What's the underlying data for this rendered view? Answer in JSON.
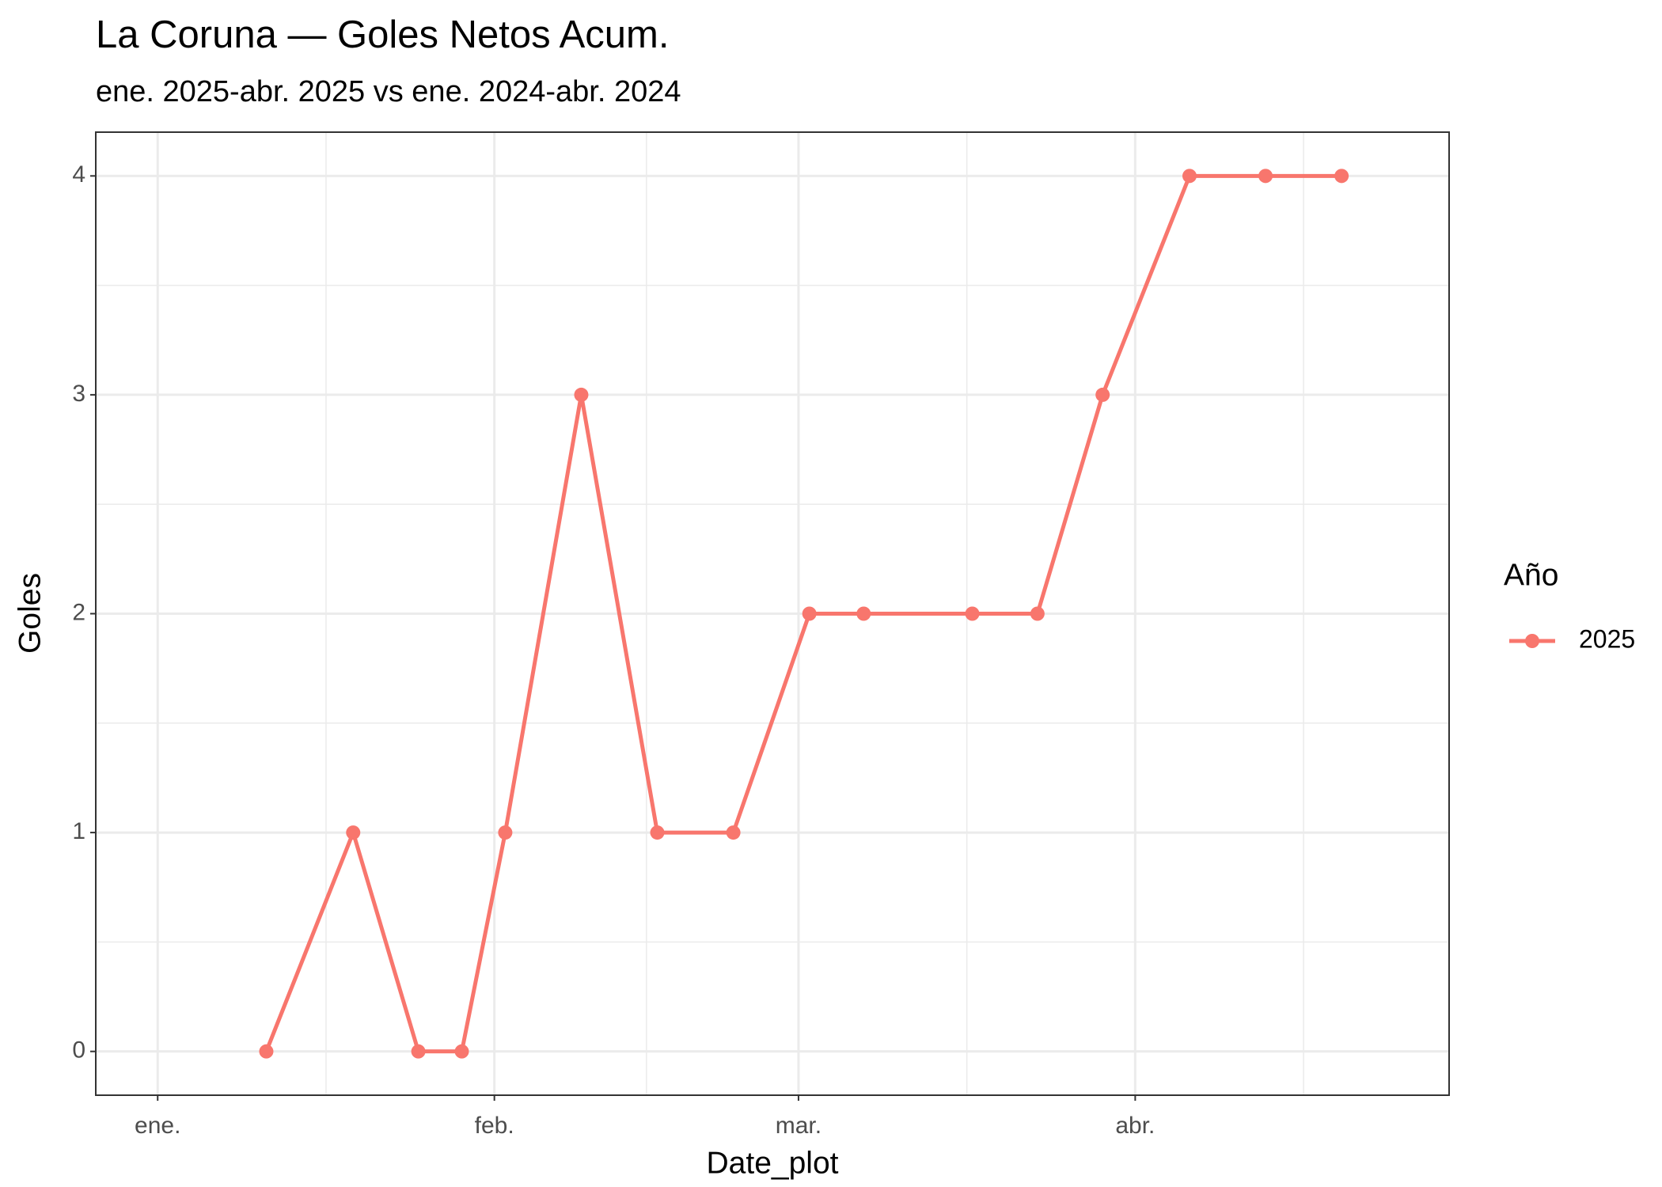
{
  "chart_data": {
    "type": "line",
    "title": "La Coruna — Goles Netos Acum.",
    "subtitle": "ene. 2025-abr. 2025 vs ene. 2024-abr. 2024",
    "x_label": "Date_plot",
    "y_label": "Goles",
    "legend_title": "Año",
    "x": [
      10,
      18,
      24,
      28,
      32,
      39,
      46,
      53,
      60,
      65,
      75,
      81,
      87,
      95,
      102,
      109
    ],
    "series": [
      {
        "name": "2025",
        "color": "#F8766D",
        "values": [
          0,
          1,
          0,
          0,
          1,
          3,
          1,
          1,
          2,
          2,
          2,
          2,
          3,
          4,
          4,
          4
        ]
      }
    ],
    "xlim": [
      -5.7,
      118.9
    ],
    "xticks": [
      {
        "value": 0,
        "label": "ene."
      },
      {
        "value": 31,
        "label": "feb."
      },
      {
        "value": 59,
        "label": "mar."
      },
      {
        "value": 90,
        "label": "abr."
      }
    ],
    "ylim": [
      -0.2,
      4.2
    ],
    "yticks": [
      0,
      1,
      2,
      3,
      4
    ],
    "grid": true,
    "legend": "right"
  }
}
